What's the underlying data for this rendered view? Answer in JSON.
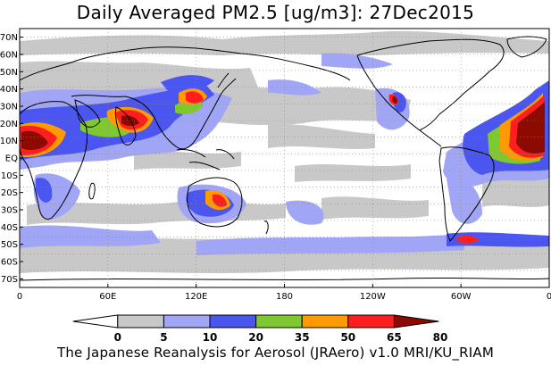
{
  "title": "Daily Averaged PM2.5 [ug/m3]: 27Dec2015",
  "footer": "The Japanese Reanalysis for Aerosol (JRAero) v1.0 MRI/KU_RIAM",
  "map": {
    "projection": "equirectangular",
    "lon_range": [
      0,
      360
    ],
    "lat_range": [
      -75,
      75
    ],
    "lat_ticks": [
      {
        "lat": 70,
        "label": "70N"
      },
      {
        "lat": 60,
        "label": "60N"
      },
      {
        "lat": 50,
        "label": "50N"
      },
      {
        "lat": 40,
        "label": "40N"
      },
      {
        "lat": 30,
        "label": "30N"
      },
      {
        "lat": 20,
        "label": "20N"
      },
      {
        "lat": 10,
        "label": "10N"
      },
      {
        "lat": 0,
        "label": "EQ"
      },
      {
        "lat": -10,
        "label": "10S"
      },
      {
        "lat": -20,
        "label": "20S"
      },
      {
        "lat": -30,
        "label": "30S"
      },
      {
        "lat": -40,
        "label": "40S"
      },
      {
        "lat": -50,
        "label": "50S"
      },
      {
        "lat": -60,
        "label": "60S"
      },
      {
        "lat": -70,
        "label": "70S"
      }
    ],
    "lon_ticks": [
      {
        "lon": 0,
        "label": "0"
      },
      {
        "lon": 60,
        "label": "60E"
      },
      {
        "lon": 120,
        "label": "120E"
      },
      {
        "lon": 180,
        "label": "180"
      },
      {
        "lon": 240,
        "label": "120W"
      },
      {
        "lon": 300,
        "label": "60W"
      },
      {
        "lon": 360,
        "label": "0"
      }
    ],
    "colors": {
      "level1": "#c8c8c8",
      "level2": "#a0a5f5",
      "level3": "#4b55f0",
      "level4": "#80c830",
      "level5": "#ff9a00",
      "level6": "#ff1e1e",
      "level7": "#8c0a00",
      "land": "#000000"
    }
  },
  "colorbar": {
    "labels": [
      "0",
      "5",
      "10",
      "20",
      "35",
      "50",
      "65",
      "80"
    ],
    "colors": [
      "#ffffff",
      "#c8c8c8",
      "#a0a5f5",
      "#4b55f0",
      "#80c830",
      "#ff9a00",
      "#ff1e1e",
      "#8c0a00"
    ]
  }
}
